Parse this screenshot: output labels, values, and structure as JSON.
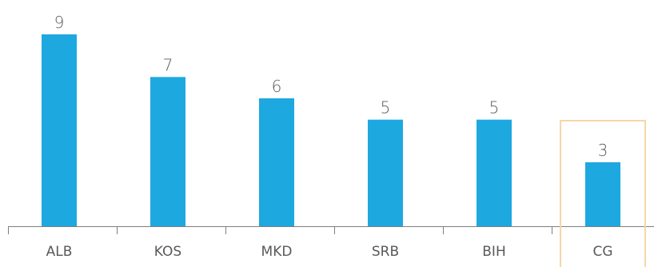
{
  "chart_data": {
    "type": "bar",
    "categories": [
      "ALB",
      "KOS",
      "MKD",
      "SRB",
      "BIH",
      "CG"
    ],
    "values": [
      9,
      7,
      6,
      5,
      5,
      3
    ],
    "data_labels": [
      "9",
      "7",
      "6",
      "5",
      "5",
      "3"
    ],
    "highlighted_category": "CG",
    "ylim": [
      0,
      9
    ],
    "grid": false,
    "legend": "none",
    "colors": {
      "bar": "#1ea8e0",
      "highlight_outline": "#f6d7a7",
      "text": "#595959",
      "axis": "#7f7f7f"
    }
  }
}
